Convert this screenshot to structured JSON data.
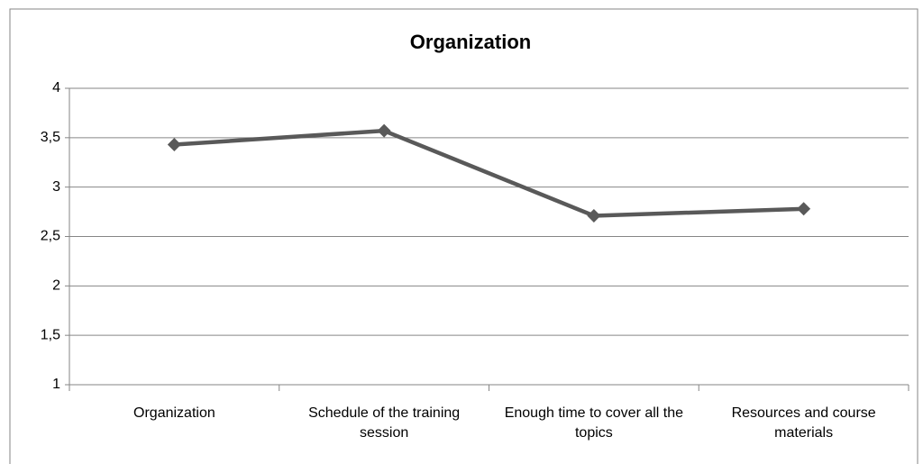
{
  "chart_data": {
    "type": "line",
    "title": "Organization",
    "categories": [
      "Organization",
      "Schedule of the training session",
      "Enough time to cover all the topics",
      "Resources and course materials"
    ],
    "series": [
      {
        "name": "Organization",
        "color": "#595959",
        "values": [
          3.43,
          3.57,
          2.71,
          2.78
        ]
      }
    ],
    "ylim": [
      1,
      4
    ],
    "yticks": [
      1,
      {
        "value": 1.5,
        "label": "1,5"
      },
      2,
      {
        "value": 2.5,
        "label": "2,5"
      },
      3,
      {
        "value": 3.5,
        "label": "3,5"
      },
      4
    ],
    "grid": true
  }
}
